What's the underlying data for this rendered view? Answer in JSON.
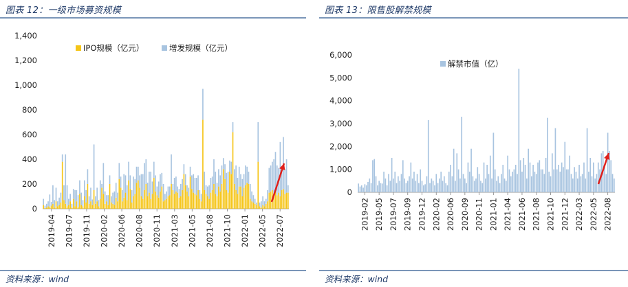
{
  "left": {
    "title": "图表 12：一级市场募资规模",
    "source": "资料来源：wind",
    "chart_data": {
      "type": "bar",
      "stacked": true,
      "ylim": [
        0,
        1400
      ],
      "yticks": [
        "0",
        "200",
        "400",
        "600",
        "800",
        "1,000",
        "1,200",
        "1,400"
      ],
      "xticks": [
        "2019-04",
        "2019-07",
        "2019-11",
        "2020-02",
        "2020-06",
        "2020-08",
        "2020-11",
        "2021-03",
        "2021-05",
        "2021-08",
        "2021-10",
        "2022-01",
        "2022-05",
        "2022-07"
      ],
      "legend_position": "top-left",
      "series": [
        {
          "name": "IPO规模（亿元）",
          "color": "#f5c518",
          "values": [
            30,
            5,
            10,
            20,
            15,
            25,
            40,
            10,
            60,
            20,
            30,
            50,
            380,
            70,
            40,
            20,
            30,
            60,
            10,
            80,
            20,
            60,
            15,
            120,
            30,
            20,
            100,
            50,
            200,
            40,
            60,
            30,
            150,
            40,
            60,
            20,
            80,
            170,
            120,
            40,
            60,
            30,
            200,
            50,
            40,
            30,
            90,
            60,
            240,
            170,
            60,
            90,
            130,
            70,
            230,
            160,
            50,
            100,
            120,
            210,
            230,
            170,
            100,
            80,
            150,
            200,
            100,
            130,
            80,
            120,
            250,
            140,
            110,
            90,
            140,
            180,
            60,
            70,
            80,
            100,
            110,
            200,
            150,
            120,
            140,
            130,
            90,
            100,
            150,
            280,
            190,
            140,
            100,
            260,
            160,
            130,
            120,
            110,
            150,
            80,
            60,
            720,
            150,
            120,
            100,
            80,
            130,
            150,
            200,
            120,
            100,
            180,
            140,
            200,
            320,
            240,
            150,
            130,
            300,
            280,
            620,
            200,
            150,
            120,
            180,
            180,
            100,
            170,
            190,
            210,
            200,
            80,
            60,
            50,
            40,
            30,
            380,
            20,
            10,
            30,
            20,
            40,
            60,
            130,
            140,
            150,
            120,
            140,
            110,
            130,
            100,
            150,
            160,
            120,
            130,
            130
          ]
        },
        {
          "name": "增发规模（亿元）",
          "color": "#a8c4e0",
          "values": [
            50,
            20,
            30,
            40,
            100,
            30,
            150,
            60,
            110,
            40,
            60,
            80,
            60,
            120,
            400,
            170,
            50,
            60,
            30,
            80,
            130,
            90,
            95,
            110,
            100,
            50,
            130,
            100,
            120,
            60,
            110,
            45,
            370,
            60,
            110,
            50,
            150,
            30,
            250,
            100,
            50,
            80,
            70,
            50,
            90,
            110,
            120,
            70,
            130,
            90,
            90,
            190,
            140,
            120,
            150,
            110,
            100,
            160,
            120,
            130,
            110,
            100,
            180,
            200,
            220,
            200,
            110,
            170,
            220,
            100,
            130,
            130,
            70,
            130,
            140,
            110,
            140,
            50,
            60,
            80,
            70,
            240,
            50,
            130,
            120,
            50,
            70,
            100,
            90,
            80,
            90,
            50,
            70,
            80,
            110,
            150,
            130,
            140,
            120,
            70,
            60,
            250,
            150,
            70,
            80,
            110,
            120,
            110,
            200,
            180,
            110,
            140,
            130,
            150,
            90,
            120,
            140,
            170,
            90,
            100,
            80,
            120,
            200,
            130,
            160,
            100,
            140,
            110,
            160,
            130,
            100,
            120,
            80,
            60,
            40,
            20,
            320,
            30,
            50,
            70,
            40,
            40,
            90,
            200,
            210,
            230,
            280,
            320,
            240,
            200,
            440,
            160,
            420,
            200,
            270,
            60
          ]
        }
      ],
      "annotation": {
        "type": "arrow",
        "color": "#e0201b"
      }
    }
  },
  "right": {
    "title": "图表 13：限售股解禁规模",
    "source": "资料来源：wind",
    "chart_data": {
      "type": "bar",
      "ylim": [
        0,
        6000
      ],
      "yticks": [
        "0",
        "1,000",
        "2,000",
        "3,000",
        "4,000",
        "5,000",
        "6,000"
      ],
      "xticks": [
        "2019-02",
        "2019-05",
        "2019-07",
        "2019-09",
        "2019-12",
        "2020-02",
        "2020-06",
        "2020-09",
        "2020-11",
        "2021-01",
        "2021-04",
        "2021-06",
        "2021-08",
        "2021-10",
        "2021-12",
        "2022-03",
        "2022-05",
        "2022-08"
      ],
      "legend_position": "top-center",
      "series": [
        {
          "name": "解禁市值（亿）",
          "color": "#a8c4e0",
          "values": [
            380,
            250,
            300,
            200,
            350,
            300,
            450,
            600,
            400,
            1400,
            1450,
            700,
            300,
            500,
            400,
            380,
            900,
            600,
            300,
            800,
            500,
            1500,
            600,
            900,
            400,
            700,
            500,
            800,
            1400,
            600,
            400,
            500,
            700,
            1300,
            600,
            900,
            500,
            800,
            400,
            1000,
            500,
            300,
            350,
            700,
            3150,
            400,
            600,
            500,
            300,
            800,
            400,
            600,
            900,
            500,
            700,
            400,
            300,
            900,
            1200,
            700,
            1900,
            500,
            1700,
            1000,
            600,
            3300,
            800,
            600,
            400,
            1300,
            900,
            1900,
            700,
            500,
            600,
            1100,
            800,
            500,
            400,
            1300,
            600,
            1200,
            800,
            1600,
            600,
            2600,
            1000,
            500,
            700,
            400,
            800,
            1200,
            600,
            500,
            1600,
            1000,
            700,
            900,
            1000,
            1200,
            800,
            5400,
            1400,
            900,
            1500,
            1200,
            600,
            1900,
            1300,
            700,
            1200,
            900,
            800,
            1300,
            1400,
            1000,
            1000,
            800,
            1500,
            3250,
            900,
            700,
            1700,
            1000,
            2800,
            1000,
            1200,
            900,
            1300,
            1100,
            2200,
            1000,
            1000,
            1600,
            800,
            600,
            1100,
            900,
            600,
            1200,
            700,
            800,
            1300,
            600,
            2800,
            900,
            1500,
            700,
            1300,
            600,
            800,
            1300,
            1000,
            1700,
            1800,
            1200,
            800,
            2600,
            1800,
            1400,
            800,
            600
          ]
        }
      ],
      "annotation": {
        "type": "arrow",
        "color": "#e0201b"
      }
    }
  }
}
